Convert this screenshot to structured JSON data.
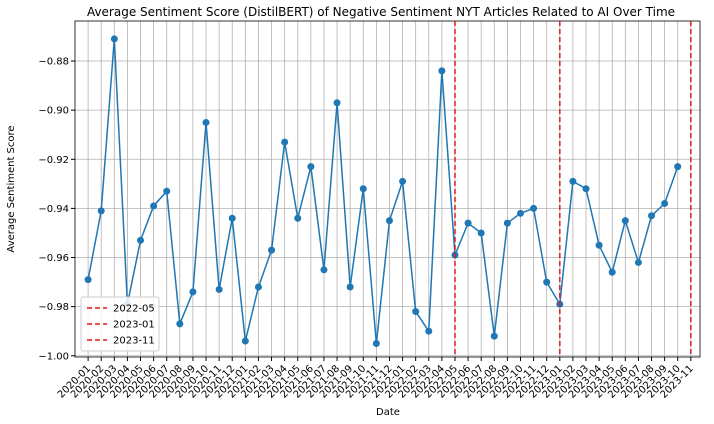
{
  "chart_data": {
    "type": "line",
    "title": "Average Sentiment Score (DistilBERT) of Negative Sentiment NYT Articles Related to AI Over Time",
    "x_label": "Date",
    "y_label": "Average Sentiment Score",
    "categories": [
      "2020-01",
      "2020-02",
      "2020-03",
      "2020-04",
      "2020-05",
      "2020-06",
      "2020-07",
      "2020-08",
      "2020-09",
      "2020-10",
      "2020-11",
      "2020-12",
      "2021-01",
      "2021-02",
      "2021-03",
      "2021-04",
      "2021-05",
      "2021-06",
      "2021-07",
      "2021-08",
      "2021-09",
      "2021-10",
      "2021-11",
      "2021-12",
      "2022-01",
      "2022-02",
      "2022-03",
      "2022-04",
      "2022-05",
      "2022-06",
      "2022-07",
      "2022-08",
      "2022-09",
      "2022-10",
      "2022-11",
      "2022-12",
      "2023-01",
      "2023-02",
      "2023-03",
      "2023-04",
      "2023-05",
      "2023-06",
      "2023-07",
      "2023-08",
      "2023-09",
      "2023-10",
      "2023-11"
    ],
    "series": [
      {
        "name": "Average Sentiment Score",
        "color": "#1f77b4",
        "values": [
          -0.969,
          -0.941,
          -0.871,
          -0.979,
          -0.953,
          -0.939,
          -0.933,
          -0.987,
          -0.974,
          -0.905,
          -0.973,
          -0.944,
          -0.994,
          -0.972,
          -0.957,
          -0.913,
          -0.944,
          -0.923,
          -0.965,
          -0.897,
          -0.972,
          -0.932,
          -0.995,
          -0.945,
          -0.929,
          -0.982,
          -0.99,
          -0.884,
          -0.959,
          -0.946,
          -0.95,
          -0.992,
          -0.946,
          -0.942,
          -0.94,
          -0.97,
          -0.979,
          -0.929,
          -0.932,
          -0.955,
          -0.966,
          -0.945,
          -0.962,
          -0.943,
          -0.938,
          -0.923,
          null
        ]
      }
    ],
    "vlines": [
      {
        "name": "2022-05",
        "at": "2022-05",
        "color": "#e31a1c"
      },
      {
        "name": "2023-01",
        "at": "2023-01",
        "color": "#e31a1c"
      },
      {
        "name": "2023-11",
        "at": "2023-11",
        "color": "#e31a1c"
      }
    ],
    "ylim": [
      -1.0005,
      -0.8637
    ],
    "yticks": [
      {
        "value": -1.0,
        "label": "−1.00"
      },
      {
        "value": -0.98,
        "label": "−0.98"
      },
      {
        "value": -0.96,
        "label": "−0.96"
      },
      {
        "value": -0.94,
        "label": "−0.94"
      },
      {
        "value": -0.92,
        "label": "−0.92"
      },
      {
        "value": -0.9,
        "label": "−0.90"
      },
      {
        "value": -0.88,
        "label": "−0.88"
      }
    ],
    "grid": true,
    "legend": "lower left"
  }
}
